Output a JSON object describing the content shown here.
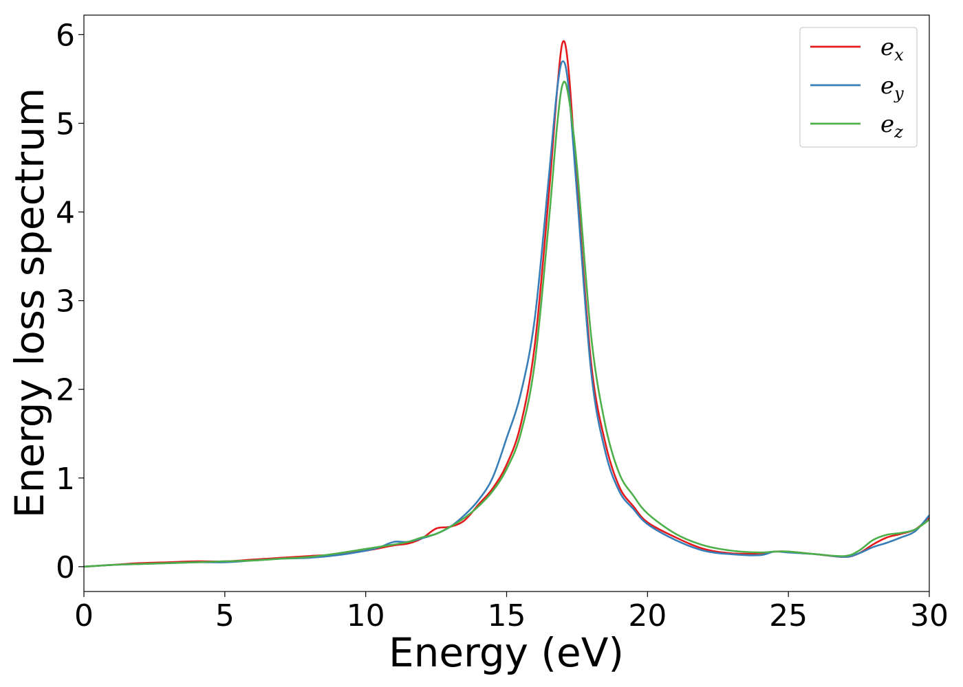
{
  "chart_data": {
    "type": "line",
    "title": "",
    "xlabel": "Energy (eV)",
    "ylabel": "Energy loss spectrum",
    "xlim": [
      0,
      30
    ],
    "ylim": [
      -0.28,
      6.22
    ],
    "xticks": [
      0,
      5,
      10,
      15,
      20,
      25,
      30
    ],
    "xtick_labels": [
      "0",
      "5",
      "10",
      "15",
      "20",
      "25",
      "30"
    ],
    "yticks": [
      0,
      1,
      2,
      3,
      4,
      5,
      6
    ],
    "ytick_labels": [
      "0",
      "1",
      "2",
      "3",
      "4",
      "5",
      "6"
    ],
    "grid": false,
    "legend_position": "top-right",
    "series": [
      {
        "name": "e_x",
        "label_base": "e",
        "label_sub": "x",
        "color": "#e41a1c",
        "x": [
          0,
          1,
          2,
          3,
          4,
          5,
          6,
          7,
          8,
          9,
          10,
          11,
          11.5,
          12,
          12.5,
          13,
          13.5,
          14,
          14.5,
          15,
          15.5,
          16,
          16.5,
          16.8,
          17,
          17.2,
          17.5,
          18,
          18.5,
          19,
          19.5,
          20,
          21,
          22,
          23,
          24,
          24.5,
          25,
          26,
          27,
          27.5,
          28,
          28.5,
          29,
          29.5,
          30
        ],
        "y": [
          0,
          0.02,
          0.04,
          0.05,
          0.06,
          0.06,
          0.08,
          0.1,
          0.12,
          0.14,
          0.18,
          0.24,
          0.26,
          0.32,
          0.43,
          0.45,
          0.52,
          0.7,
          0.88,
          1.15,
          1.6,
          2.5,
          4.2,
          5.4,
          5.92,
          5.6,
          4.3,
          2.3,
          1.4,
          0.9,
          0.68,
          0.5,
          0.33,
          0.2,
          0.15,
          0.15,
          0.17,
          0.17,
          0.14,
          0.11,
          0.15,
          0.25,
          0.33,
          0.37,
          0.42,
          0.55
        ]
      },
      {
        "name": "e_y",
        "label_base": "e",
        "label_sub": "y",
        "color": "#377eb8",
        "x": [
          0,
          1,
          2,
          3,
          4,
          5,
          6,
          7,
          8,
          9,
          10,
          10.5,
          11,
          11.5,
          12,
          12.5,
          13,
          13.5,
          14,
          14.5,
          15,
          15.5,
          16,
          16.5,
          16.8,
          17,
          17.2,
          17.5,
          18,
          18.5,
          19,
          19.5,
          20,
          21,
          22,
          23,
          24,
          24.5,
          25,
          26,
          27,
          27.5,
          28,
          28.5,
          29,
          29.5,
          30
        ],
        "y": [
          0,
          0.02,
          0.03,
          0.04,
          0.05,
          0.05,
          0.07,
          0.09,
          0.1,
          0.13,
          0.18,
          0.22,
          0.28,
          0.28,
          0.32,
          0.37,
          0.45,
          0.58,
          0.75,
          1.0,
          1.45,
          1.95,
          2.8,
          4.4,
          5.4,
          5.7,
          5.4,
          4.2,
          2.2,
          1.3,
          0.85,
          0.65,
          0.48,
          0.3,
          0.18,
          0.14,
          0.13,
          0.17,
          0.16,
          0.14,
          0.11,
          0.15,
          0.22,
          0.27,
          0.33,
          0.4,
          0.58
        ]
      },
      {
        "name": "e_z",
        "label_base": "e",
        "label_sub": "z",
        "color": "#4daf4a",
        "x": [
          0,
          1,
          2,
          3,
          4,
          5,
          6,
          7,
          8,
          9,
          10,
          11,
          11.5,
          12,
          12.5,
          13,
          13.5,
          14,
          14.5,
          15,
          15.5,
          16,
          16.5,
          16.8,
          17,
          17.2,
          17.5,
          18,
          18.5,
          19,
          19.5,
          20,
          21,
          22,
          23,
          24,
          24.5,
          25,
          26,
          27,
          27.5,
          28,
          28.5,
          29,
          29.5,
          30
        ],
        "y": [
          0,
          0.02,
          0.03,
          0.04,
          0.05,
          0.06,
          0.07,
          0.09,
          0.11,
          0.15,
          0.2,
          0.25,
          0.28,
          0.33,
          0.37,
          0.45,
          0.55,
          0.68,
          0.85,
          1.1,
          1.5,
          2.3,
          3.9,
          5.0,
          5.45,
          5.3,
          4.5,
          2.6,
          1.6,
          1.05,
          0.8,
          0.6,
          0.37,
          0.24,
          0.18,
          0.16,
          0.17,
          0.17,
          0.14,
          0.12,
          0.18,
          0.3,
          0.36,
          0.38,
          0.42,
          0.53
        ]
      }
    ]
  }
}
